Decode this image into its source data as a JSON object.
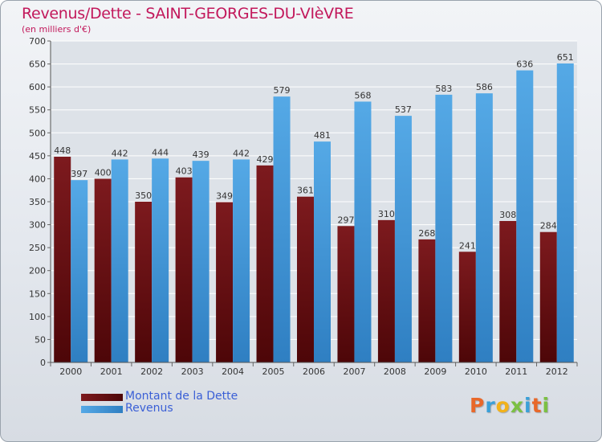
{
  "header": {
    "title": "Revenus/Dette - SAINT-GEORGES-DU-VIèVRE",
    "subtitle": "(en milliers d'€)"
  },
  "legend": {
    "debt_label": "Montant de la Dette",
    "revenue_label": "Revenus"
  },
  "logo": {
    "text": "Proxiti",
    "letter_colors": [
      "#e8682a",
      "#3aa0d8",
      "#f2b21a",
      "#7bc043",
      "#3aa0d8",
      "#e8682a",
      "#7bc043"
    ]
  },
  "colors": {
    "debt": "#7d1a1e",
    "debt_dark": "#4d0608",
    "revenue": "#55a9e6",
    "revenue_dark": "#2f7fc2",
    "title": "#c2185b",
    "legend_text": "#3a5fd6"
  },
  "chart_data": {
    "type": "bar",
    "categories": [
      "2000",
      "2001",
      "2002",
      "2003",
      "2004",
      "2005",
      "2006",
      "2007",
      "2008",
      "2009",
      "2010",
      "2011",
      "2012"
    ],
    "series": [
      {
        "name": "Montant de la Dette",
        "values": [
          448,
          400,
          350,
          403,
          349,
          429,
          361,
          297,
          310,
          268,
          241,
          308,
          284
        ]
      },
      {
        "name": "Revenus",
        "values": [
          397,
          442,
          444,
          439,
          442,
          579,
          481,
          568,
          537,
          583,
          586,
          636,
          651
        ]
      }
    ],
    "yticks": [
      0,
      50,
      100,
      150,
      200,
      250,
      300,
      350,
      400,
      450,
      500,
      550,
      600,
      650,
      700
    ],
    "ylim": [
      0,
      700
    ],
    "grid": true,
    "legend_position": "bottom-left"
  }
}
